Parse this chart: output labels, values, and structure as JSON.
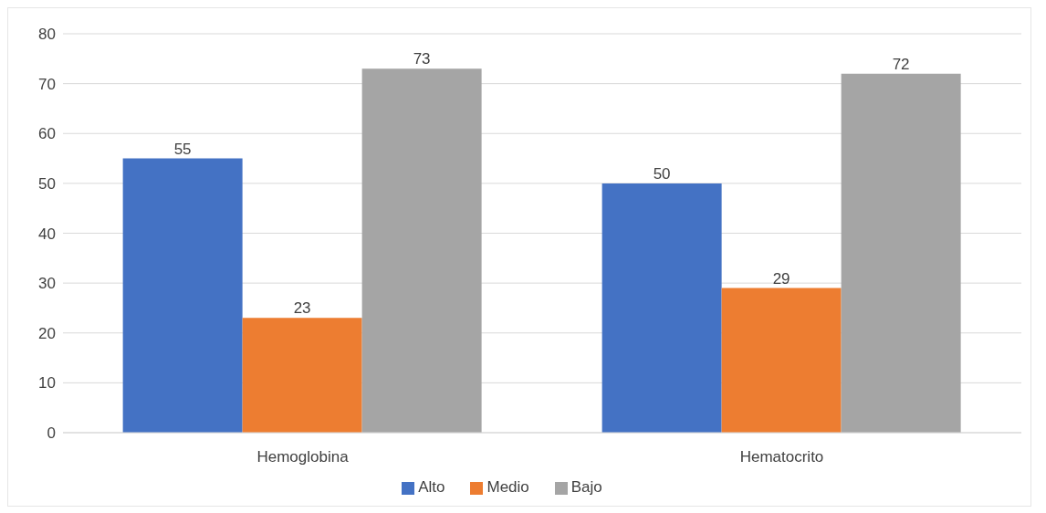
{
  "chart_data": {
    "type": "bar",
    "categories": [
      "Hemoglobina",
      "Hematocrito"
    ],
    "series": [
      {
        "name": "Alto",
        "color": "#4472c4",
        "values": [
          55,
          50
        ]
      },
      {
        "name": "Medio",
        "color": "#ed7d31",
        "values": [
          23,
          29
        ]
      },
      {
        "name": "Bajo",
        "color": "#a5a5a5",
        "values": [
          73,
          72
        ]
      }
    ],
    "ylim": [
      0,
      80
    ],
    "yticks": [
      0,
      10,
      20,
      30,
      40,
      50,
      60,
      70,
      80
    ],
    "grid": "y",
    "legend": "bottom",
    "data_labels": true
  }
}
